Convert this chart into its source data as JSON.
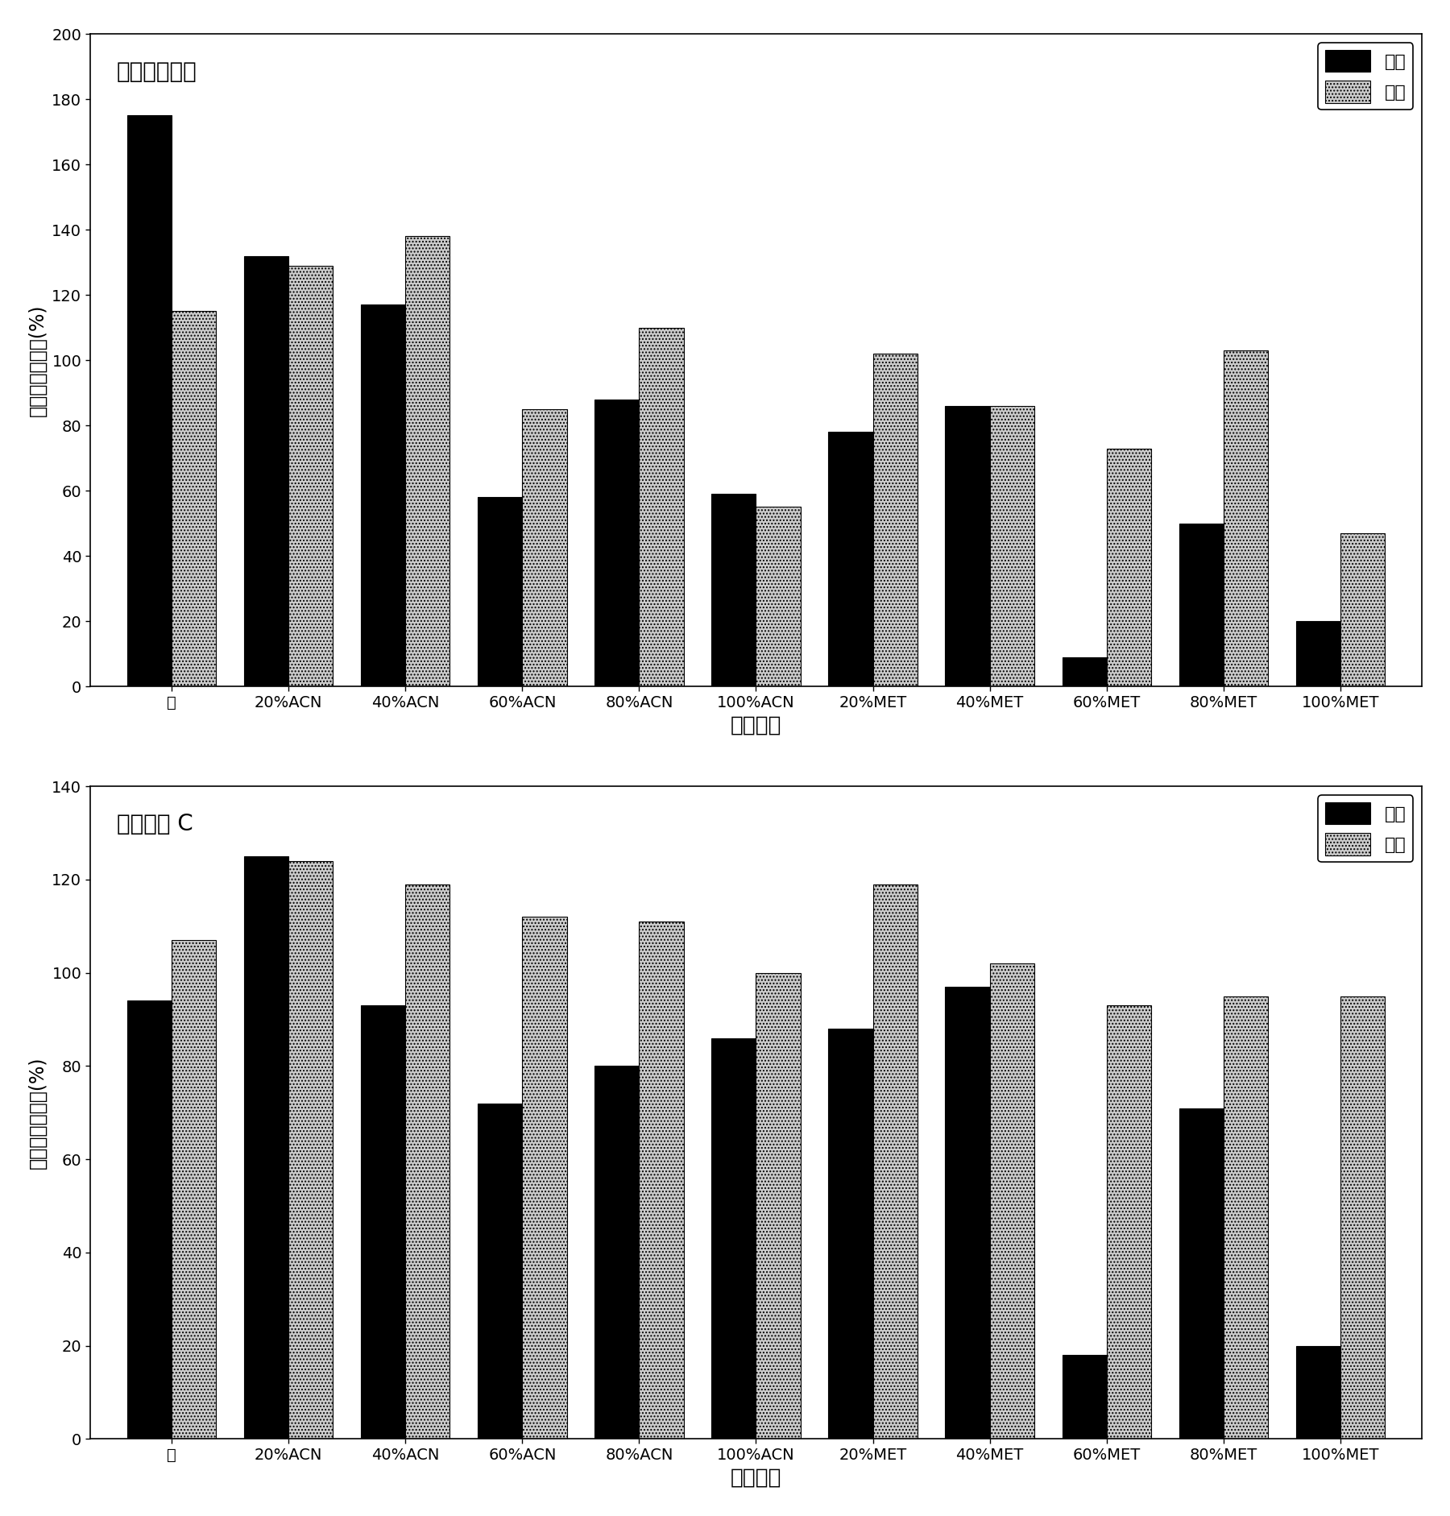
{
  "chart1": {
    "title": "牛血清白蛋白",
    "categories": [
      "水",
      "20%ACN",
      "40%ACN",
      "60%ACN",
      "80%ACN",
      "100%ACN",
      "20%MET",
      "40%MET",
      "60%MET",
      "80%MET",
      "100%MET"
    ],
    "alkaline": [
      175,
      132,
      117,
      58,
      88,
      59,
      78,
      86,
      9,
      50,
      20
    ],
    "acidic": [
      115,
      129,
      138,
      85,
      110,
      55,
      102,
      86,
      73,
      103,
      47
    ],
    "ylim": [
      0,
      200
    ],
    "yticks": [
      0,
      20,
      40,
      60,
      80,
      100,
      120,
      140,
      160,
      180,
      200
    ],
    "ylabel": "溶解相对百分比(%)",
    "xlabel": "溶剂系统"
  },
  "chart2": {
    "title": "细胞色素 C",
    "categories": [
      "水",
      "20%ACN",
      "40%ACN",
      "60%ACN",
      "80%ACN",
      "100%ACN",
      "20%MET",
      "40%MET",
      "60%MET",
      "80%MET",
      "100%MET"
    ],
    "alkaline": [
      94,
      125,
      93,
      72,
      80,
      86,
      88,
      97,
      18,
      71,
      20
    ],
    "acidic": [
      107,
      124,
      119,
      112,
      111,
      100,
      119,
      102,
      93,
      95,
      95
    ],
    "ylim": [
      0,
      140
    ],
    "yticks": [
      0,
      20,
      40,
      60,
      80,
      100,
      120,
      140
    ],
    "ylabel": "溶解相对百分比(%)",
    "xlabel": "溶剂系统"
  },
  "legend_alkaline": "碱性",
  "legend_acidic": "酸性",
  "bar_color_alkaline": "#000000",
  "bar_color_acidic": "#cccccc",
  "bar_width": 0.38,
  "title_fontsize": 20,
  "label_fontsize": 17,
  "tick_fontsize": 14,
  "legend_fontsize": 16
}
